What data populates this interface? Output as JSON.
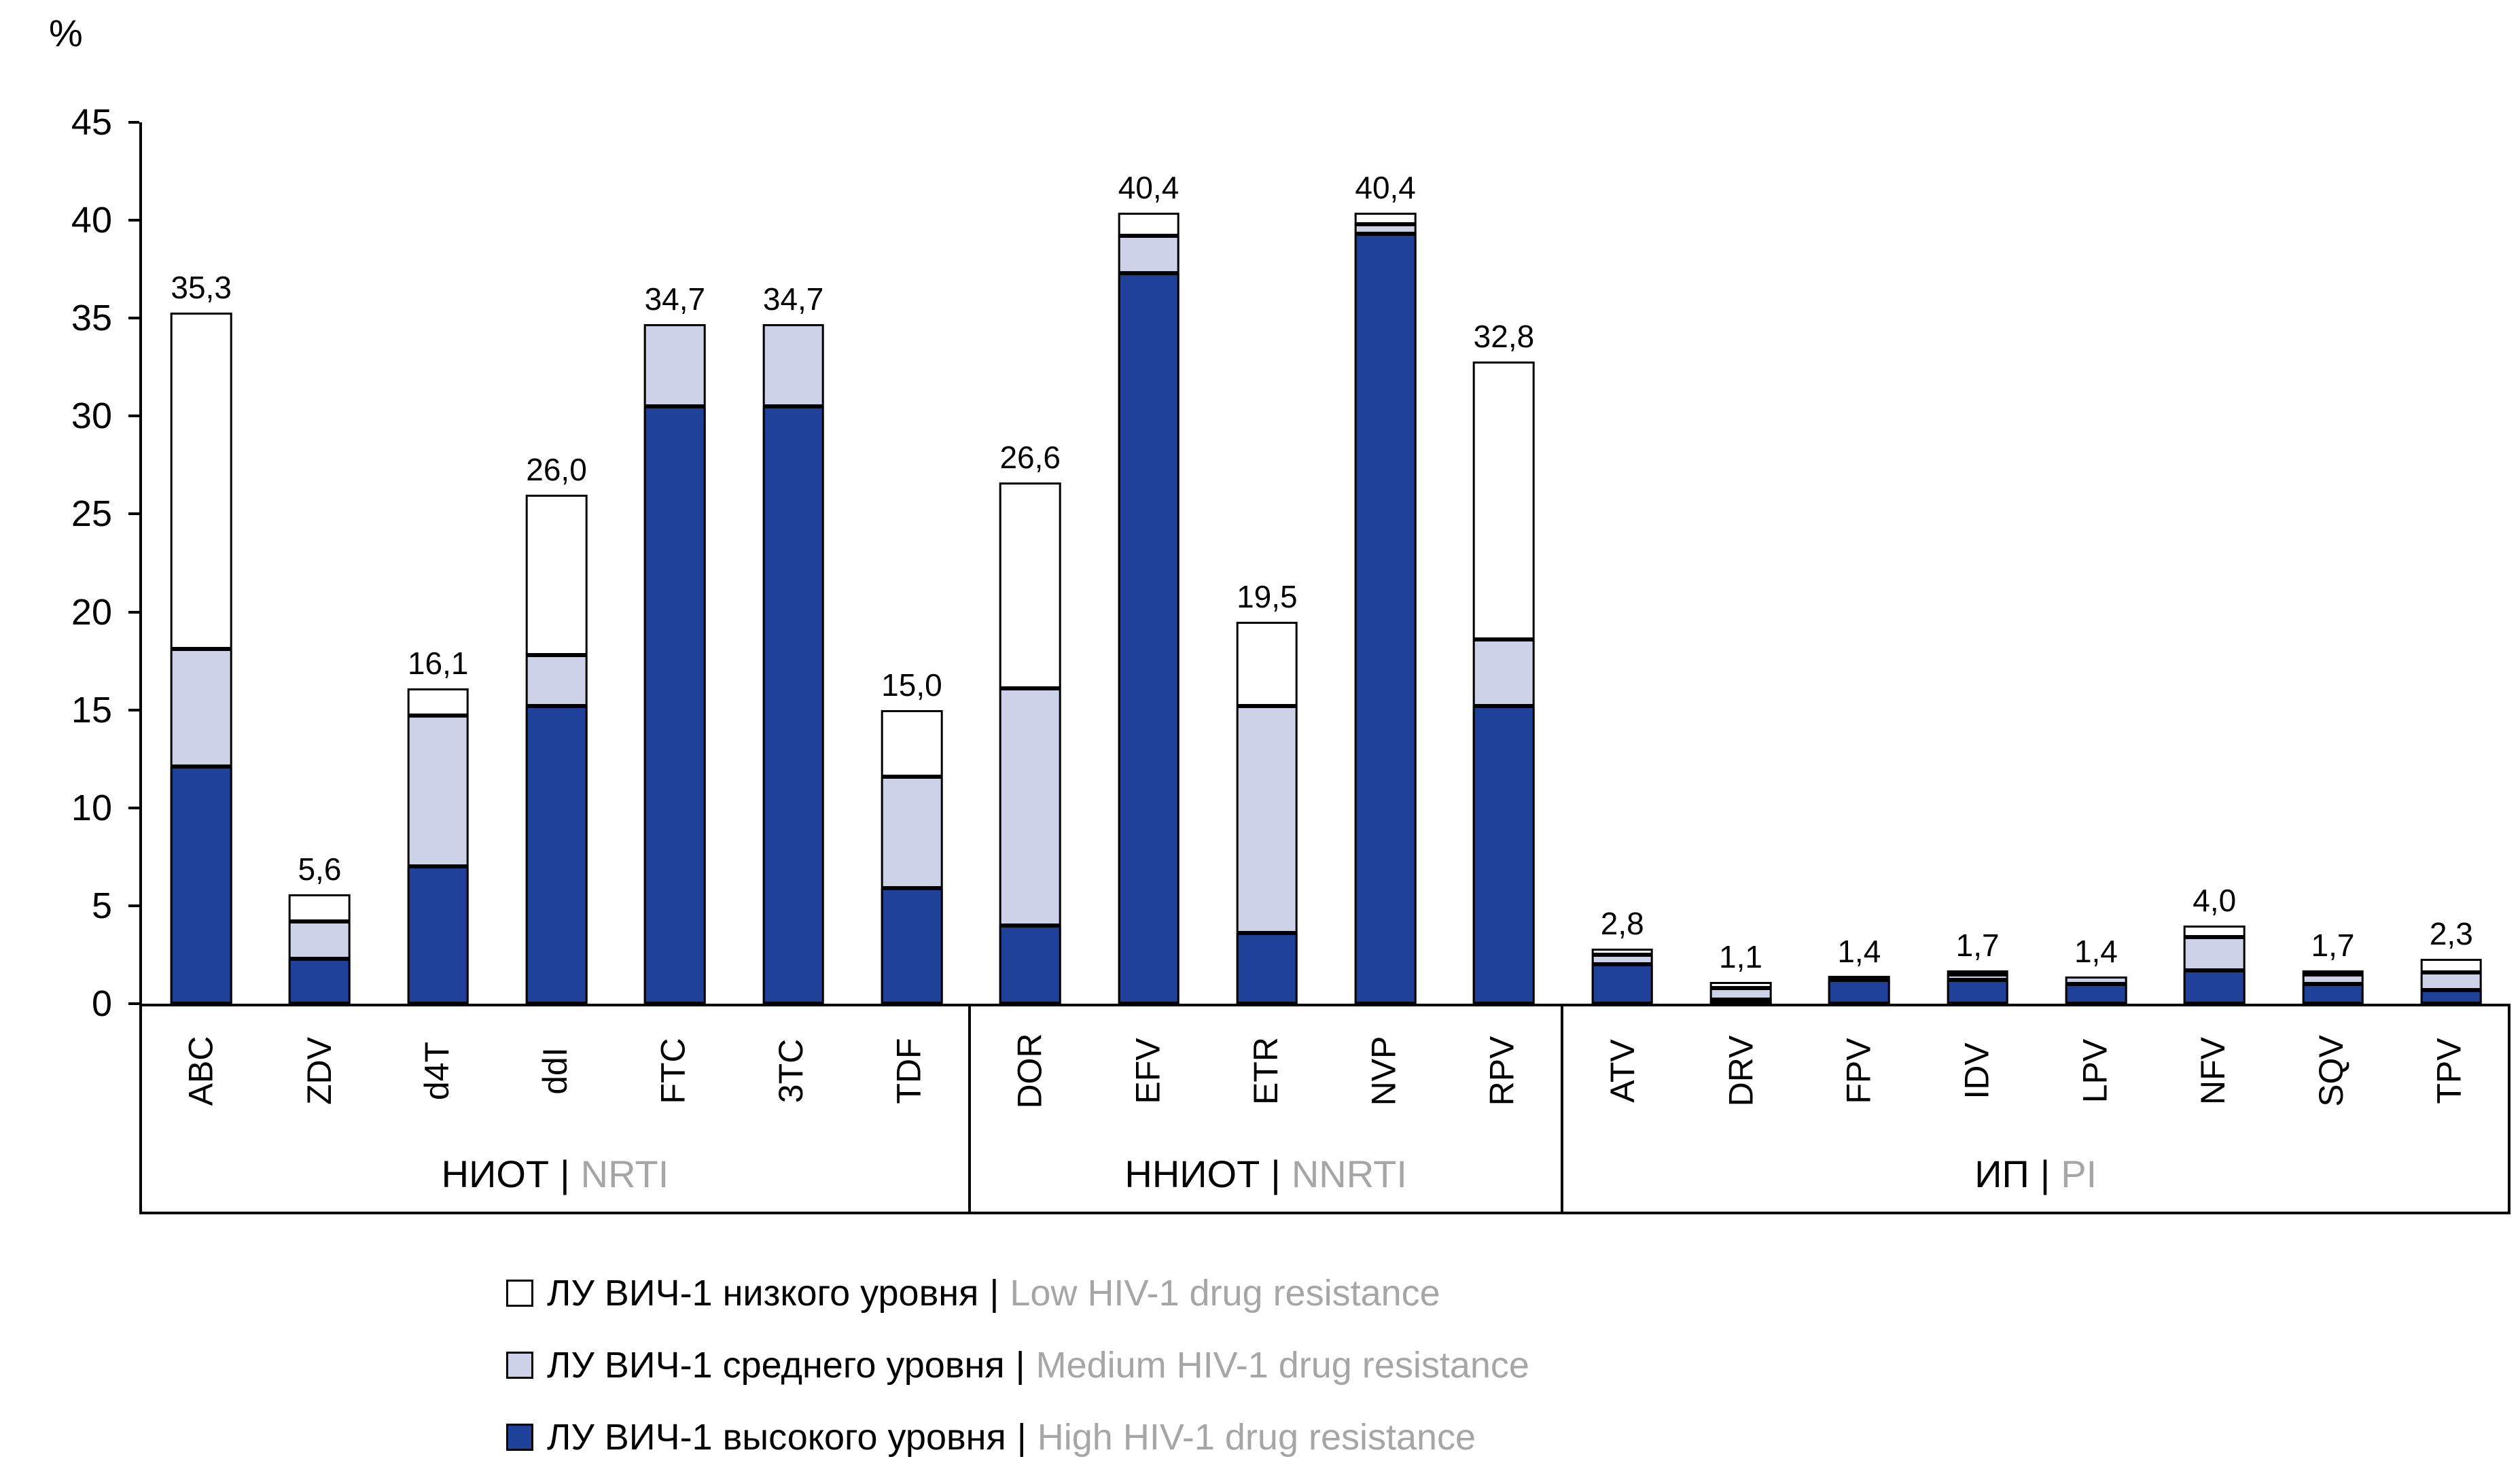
{
  "chart_data": {
    "type": "bar",
    "stacked": true,
    "title": "",
    "ylabel": "%",
    "xlabel": "",
    "ylim": [
      0,
      45
    ],
    "yticks": [
      0,
      5,
      10,
      15,
      20,
      25,
      30,
      35,
      40,
      45
    ],
    "grid": false,
    "legend_position": "bottom-left",
    "colors": {
      "high": "#20419A",
      "medium": "#CDD2E9",
      "low": "#FFFFFF",
      "axis": "#000000",
      "gray_text": "#A6A6A6"
    },
    "series_names": [
      "high",
      "medium",
      "low"
    ],
    "groups": [
      {
        "label_ru": "НИОТ",
        "label_en": "NRTI",
        "bars": [
          {
            "name": "ABC",
            "total": "35,3",
            "high": 12.1,
            "medium": 6.0,
            "low": 17.2
          },
          {
            "name": "ZDV",
            "total": "5,6",
            "high": 2.3,
            "medium": 1.9,
            "low": 1.4
          },
          {
            "name": "d4T",
            "total": "16,1",
            "high": 7.0,
            "medium": 7.7,
            "low": 1.4
          },
          {
            "name": "ddI",
            "total": "26,0",
            "high": 15.2,
            "medium": 2.6,
            "low": 8.2
          },
          {
            "name": "FTC",
            "total": "34,7",
            "high": 30.5,
            "medium": 4.2,
            "low": 0
          },
          {
            "name": "3TC",
            "total": "34,7",
            "high": 30.5,
            "medium": 4.2,
            "low": 0
          },
          {
            "name": "TDF",
            "total": "15,0",
            "high": 5.9,
            "medium": 5.7,
            "low": 3.4
          }
        ]
      },
      {
        "label_ru": "ННИОТ",
        "label_en": "NNRTI",
        "bars": [
          {
            "name": "DOR",
            "total": "26,6",
            "high": 4.0,
            "medium": 12.1,
            "low": 10.5
          },
          {
            "name": "EFV",
            "total": "40,4",
            "high": 37.3,
            "medium": 1.9,
            "low": 1.2
          },
          {
            "name": "ETR",
            "total": "19,5",
            "high": 3.6,
            "medium": 11.6,
            "low": 4.3
          },
          {
            "name": "NVP",
            "total": "40,4",
            "high": 39.3,
            "medium": 0.5,
            "low": 0.6
          },
          {
            "name": "RPV",
            "total": "32,8",
            "high": 15.2,
            "medium": 3.4,
            "low": 14.2
          }
        ]
      },
      {
        "label_ru": "ИП",
        "label_en": "PI",
        "bars": [
          {
            "name": "ATV",
            "total": "2,8",
            "high": 2.0,
            "medium": 0.5,
            "low": 0.3
          },
          {
            "name": "DRV",
            "total": "1,1",
            "high": 0.2,
            "medium": 0.6,
            "low": 0.3
          },
          {
            "name": "FPV",
            "total": "1,4",
            "high": 1.2,
            "medium": 0.2,
            "low": 0
          },
          {
            "name": "IDV",
            "total": "1,7",
            "high": 1.2,
            "medium": 0.3,
            "low": 0.2
          },
          {
            "name": "LPV",
            "total": "1,4",
            "high": 1.0,
            "medium": 0.4,
            "low": 0
          },
          {
            "name": "NFV",
            "total": "4,0",
            "high": 1.7,
            "medium": 1.7,
            "low": 0.6
          },
          {
            "name": "SQV",
            "total": "1,7",
            "high": 1.0,
            "medium": 0.5,
            "low": 0.2
          },
          {
            "name": "TPV",
            "total": "2,3",
            "high": 0.7,
            "medium": 0.9,
            "low": 0.7
          }
        ]
      }
    ],
    "legend": [
      {
        "swatch": "low",
        "ru": "ЛУ ВИЧ-1 низкого уровня",
        "sep": "|",
        "en": "Low HIV-1 drug resistance"
      },
      {
        "swatch": "medium",
        "ru": "ЛУ ВИЧ-1 среднего уровня",
        "sep": "|",
        "en": "Medium HIV-1 drug resistance"
      },
      {
        "swatch": "high",
        "ru": "ЛУ ВИЧ-1 высокого уровня",
        "sep": "|",
        "en": "High HIV-1 drug resistance"
      }
    ]
  }
}
